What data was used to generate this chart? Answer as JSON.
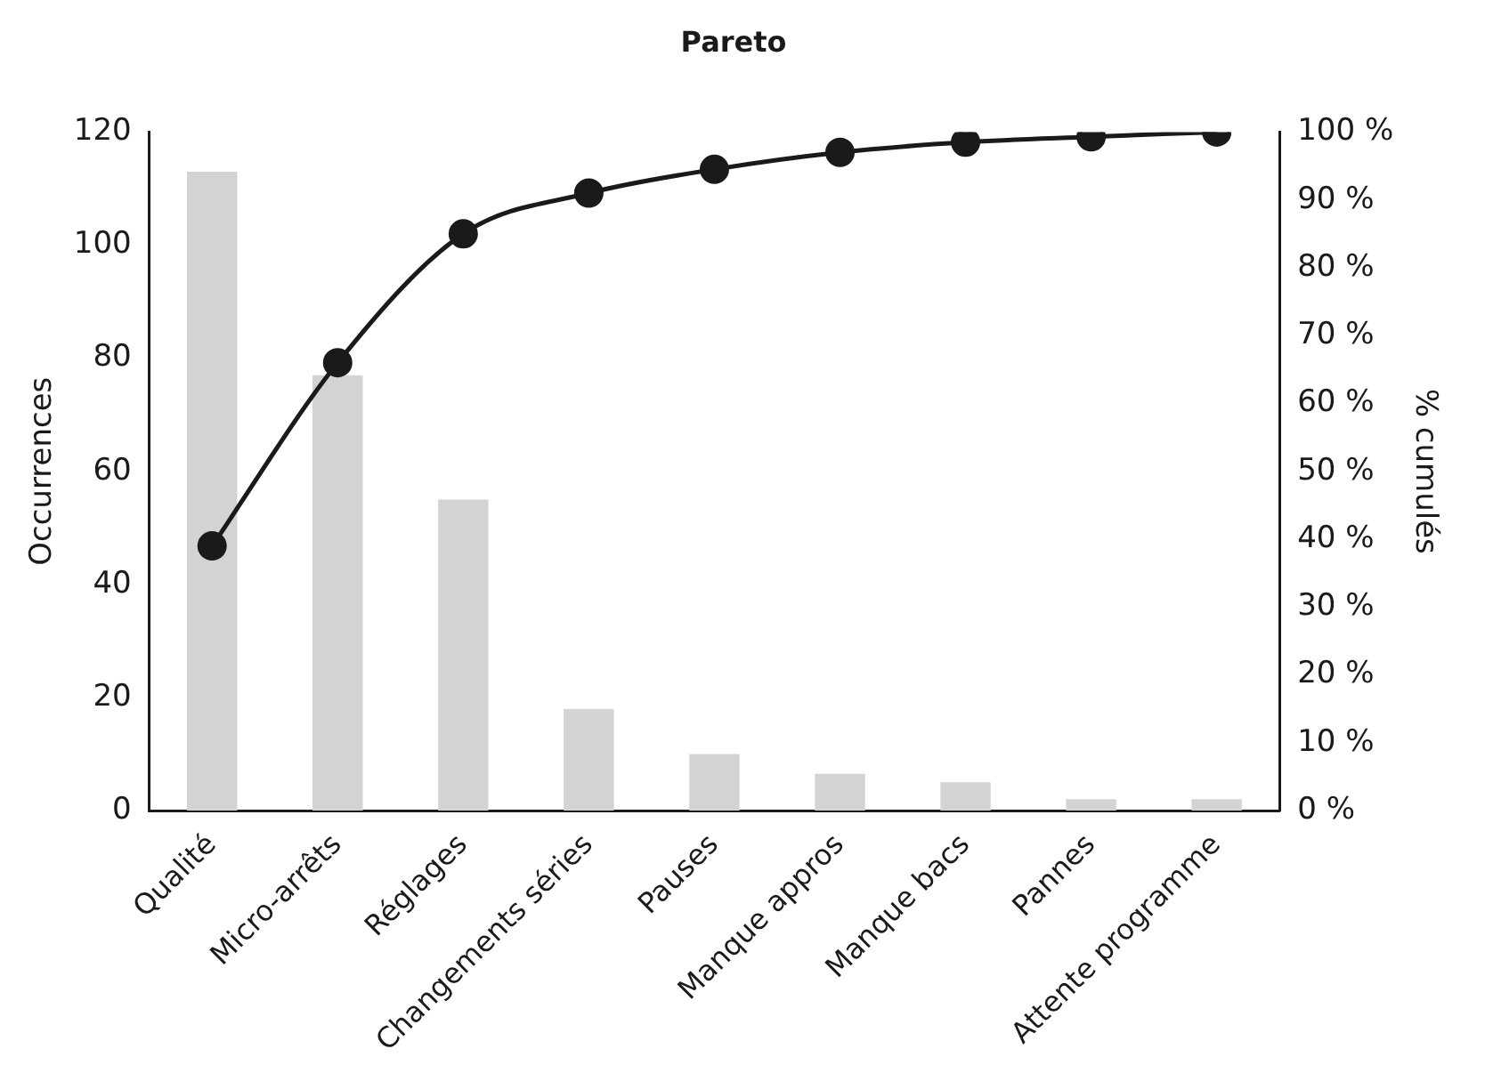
{
  "chart_data": {
    "type": "bar",
    "title": "Pareto",
    "ylabel": "Occurrences",
    "y2label": "% cumulés",
    "categories": [
      "Qualité",
      "Micro-arrêts",
      "Réglages",
      "Changements séries",
      "Pauses",
      "Manque appros",
      "Manque bacs",
      "Pannes",
      "Attente programme"
    ],
    "series": [
      {
        "color": "#d3d3d3",
        "values": [
          113,
          77,
          55,
          18,
          10,
          6.5,
          5,
          2,
          2
        ]
      },
      {
        "type": "line",
        "axis": "y2",
        "color": "#1a1a1a",
        "marker": "circle",
        "values": [
          39,
          66,
          85,
          91,
          94.5,
          97,
          98.5,
          99.3,
          100
        ]
      }
    ],
    "ylim": [
      0,
      120
    ],
    "yticks": [
      0,
      20,
      40,
      60,
      80,
      100,
      120
    ],
    "y2lim": [
      0,
      100
    ],
    "y2ticks": [
      {
        "value": 0,
        "label": "0 %"
      },
      {
        "value": 10,
        "label": "10 %"
      },
      {
        "value": 20,
        "label": "20 %"
      },
      {
        "value": 30,
        "label": "30 %"
      },
      {
        "value": 40,
        "label": "40 %"
      },
      {
        "value": 50,
        "label": "50 %"
      },
      {
        "value": 60,
        "label": "60 %"
      },
      {
        "value": 70,
        "label": "70 %"
      },
      {
        "value": 80,
        "label": "80 %"
      },
      {
        "value": 90,
        "label": "90 %"
      },
      {
        "value": 100,
        "label": "100 %"
      }
    ],
    "grid": false,
    "legend": false
  }
}
